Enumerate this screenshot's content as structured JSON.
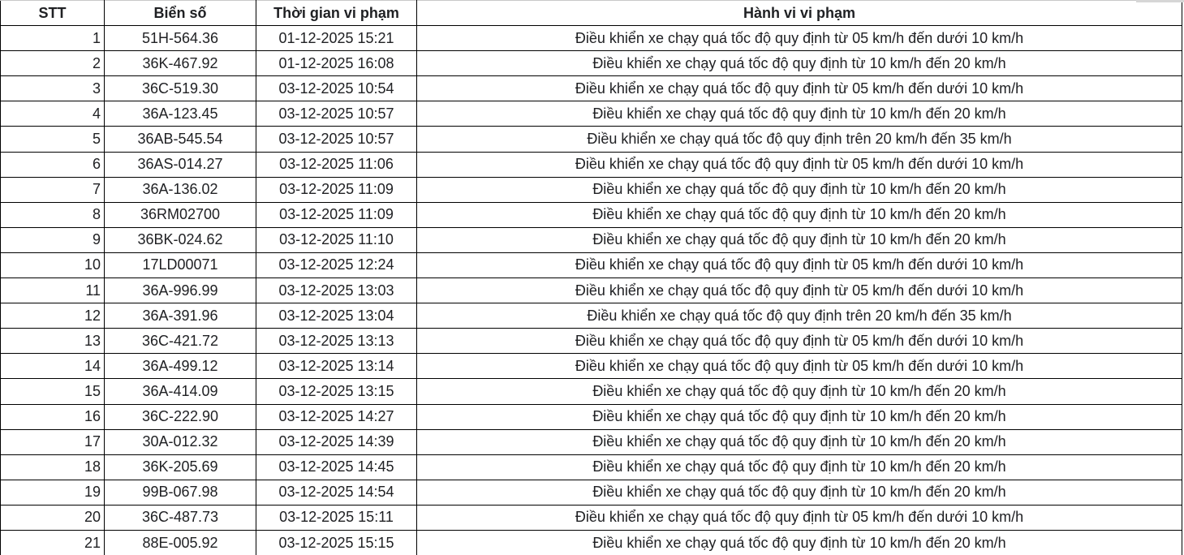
{
  "table": {
    "columns": [
      {
        "key": "stt",
        "label": "STT"
      },
      {
        "key": "plate",
        "label": "Biển số"
      },
      {
        "key": "time",
        "label": "Thời gian vi phạm"
      },
      {
        "key": "violation",
        "label": "Hành vi vi phạm"
      }
    ],
    "rows": [
      {
        "stt": "1",
        "plate": "51H-564.36",
        "time": "01-12-2025 15:21",
        "violation": "Điều khiển xe chạy quá tốc độ quy định từ 05 km/h đến dưới 10 km/h"
      },
      {
        "stt": "2",
        "plate": "36K-467.92",
        "time": "01-12-2025 16:08",
        "violation": "Điều khiển xe chạy quá tốc độ quy định từ 10 km/h đến 20 km/h"
      },
      {
        "stt": "3",
        "plate": "36C-519.30",
        "time": "03-12-2025 10:54",
        "violation": "Điều khiển xe chạy quá tốc độ quy định từ 05 km/h đến dưới 10 km/h"
      },
      {
        "stt": "4",
        "plate": "36A-123.45",
        "time": "03-12-2025 10:57",
        "violation": "Điều khiển xe chạy quá tốc độ quy định từ 10 km/h đến 20 km/h"
      },
      {
        "stt": "5",
        "plate": "36AB-545.54",
        "time": "03-12-2025 10:57",
        "violation": "Điều khiển xe chạy quá tốc độ quy định trên 20 km/h đến 35 km/h"
      },
      {
        "stt": "6",
        "plate": "36AS-014.27",
        "time": "03-12-2025 11:06",
        "violation": "Điều khiển xe chạy quá tốc độ quy định từ 05 km/h đến dưới 10 km/h"
      },
      {
        "stt": "7",
        "plate": "36A-136.02",
        "time": "03-12-2025 11:09",
        "violation": "Điều khiển xe chạy quá tốc độ quy định từ 10 km/h đến 20 km/h"
      },
      {
        "stt": "8",
        "plate": "36RM02700",
        "time": "03-12-2025 11:09",
        "violation": "Điều khiển xe chạy quá tốc độ quy định từ 10 km/h đến 20 km/h"
      },
      {
        "stt": "9",
        "plate": "36BK-024.62",
        "time": "03-12-2025 11:10",
        "violation": "Điều khiển xe chạy quá tốc độ quy định từ 10 km/h đến 20 km/h"
      },
      {
        "stt": "10",
        "plate": "17LD00071",
        "time": "03-12-2025 12:24",
        "violation": "Điều khiển xe chạy quá tốc độ quy định từ 05 km/h đến dưới 10 km/h"
      },
      {
        "stt": "11",
        "plate": "36A-996.99",
        "time": "03-12-2025 13:03",
        "violation": "Điều khiển xe chạy quá tốc độ quy định từ 05 km/h đến dưới 10 km/h"
      },
      {
        "stt": "12",
        "plate": "36A-391.96",
        "time": "03-12-2025 13:04",
        "violation": "Điều khiển xe chạy quá tốc độ quy định trên 20 km/h đến 35 km/h"
      },
      {
        "stt": "13",
        "plate": "36C-421.72",
        "time": "03-12-2025 13:13",
        "violation": "Điều khiển xe chạy quá tốc độ quy định từ 05 km/h đến dưới 10 km/h"
      },
      {
        "stt": "14",
        "plate": "36A-499.12",
        "time": "03-12-2025 13:14",
        "violation": "Điều khiển xe chạy quá tốc độ quy định từ 05 km/h đến dưới 10 km/h"
      },
      {
        "stt": "15",
        "plate": "36A-414.09",
        "time": "03-12-2025 13:15",
        "violation": "Điều khiển xe chạy quá tốc độ quy định từ 10 km/h đến 20 km/h"
      },
      {
        "stt": "16",
        "plate": "36C-222.90",
        "time": "03-12-2025 14:27",
        "violation": "Điều khiển xe chạy quá tốc độ quy định từ 10 km/h đến 20 km/h"
      },
      {
        "stt": "17",
        "plate": "30A-012.32",
        "time": "03-12-2025 14:39",
        "violation": "Điều khiển xe chạy quá tốc độ quy định từ 10 km/h đến 20 km/h"
      },
      {
        "stt": "18",
        "plate": "36K-205.69",
        "time": "03-12-2025 14:45",
        "violation": "Điều khiển xe chạy quá tốc độ quy định từ 10 km/h đến 20 km/h"
      },
      {
        "stt": "19",
        "plate": "99B-067.98",
        "time": "03-12-2025 14:54",
        "violation": "Điều khiển xe chạy quá tốc độ quy định từ 10 km/h đến 20 km/h"
      },
      {
        "stt": "20",
        "plate": "36C-487.73",
        "time": "03-12-2025 15:11",
        "violation": "Điều khiển xe chạy quá tốc độ quy định từ 05 km/h đến dưới 10 km/h"
      },
      {
        "stt": "21",
        "plate": "88E-005.92",
        "time": "03-12-2025 15:15",
        "violation": "Điều khiển xe chạy quá tốc độ quy định từ 10 km/h đến 20 km/h"
      }
    ]
  },
  "colors": {
    "border": "#000000",
    "outer_edge": "#c9c9c9",
    "text": "#202124",
    "background": "#ffffff"
  }
}
